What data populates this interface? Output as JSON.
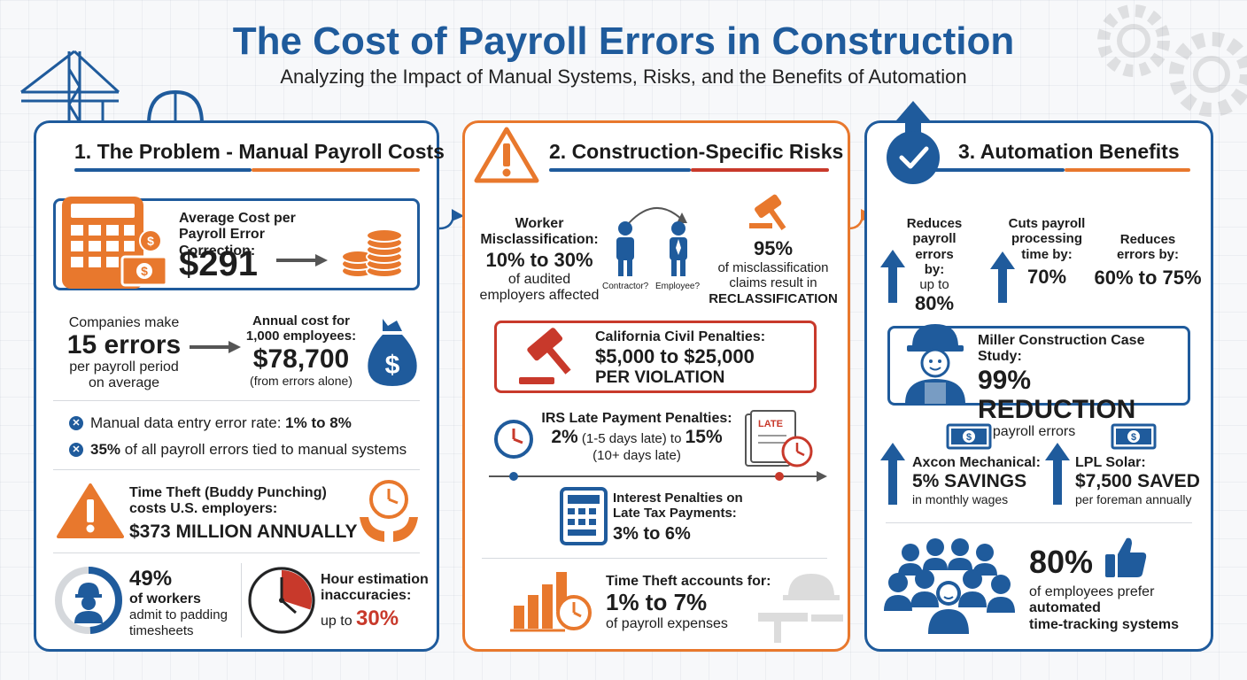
{
  "header": {
    "title": "The Cost of Payroll Errors in Construction",
    "subtitle": "Analyzing the Impact of Manual Systems, Risks, and the Benefits of Automation"
  },
  "panel1": {
    "title": "1. The Problem - Manual Payroll Costs",
    "avg_label": "Average Cost per Payroll Error Correction:",
    "avg_value": "$291",
    "companies_line1": "Companies make",
    "companies_value": "15 errors",
    "companies_line3": "per payroll period",
    "companies_line4": "on average",
    "annual_label": "Annual cost for 1,000 employees:",
    "annual_value": "$78,700",
    "annual_note": "(from errors alone)",
    "bullet1_text": "Manual data entry error rate: ",
    "bullet1_value": "1% to 8%",
    "bullet2_value": "35%",
    "bullet2_text": " of all payroll errors tied to manual systems",
    "theft_label1": "Time Theft (Buddy Punching)",
    "theft_label2": "costs U.S. employers:",
    "theft_value": "$373 MILLION ANNUALLY",
    "pad_value": "49%",
    "pad_line1": "of workers",
    "pad_line2": "admit to padding",
    "pad_line3": "timesheets",
    "pad_fraction": 0.49,
    "hour_line1": "Hour estimation",
    "hour_line2": "inaccuracies:",
    "hour_prefix": "up to ",
    "hour_value": "30%",
    "hour_fraction": 0.3
  },
  "panel2": {
    "title": "2. Construction-Specific Risks",
    "mis_line1": "Worker",
    "mis_line2": "Misclassification:",
    "mis_value": "10% to 30%",
    "mis_line3": "of audited",
    "mis_line4": "employers affected",
    "contractor_label": "Contractor?",
    "employee_label": "Employee?",
    "recl_value": "95%",
    "recl_line1": "of misclassification",
    "recl_line2": "claims result in",
    "recl_line3": "RECLASSIFICATION",
    "ca_label": "California Civil Penalties:",
    "ca_value": "$5,000 to $25,000",
    "ca_suffix": "PER VIOLATION",
    "irs_label": "IRS Late Payment Penalties:",
    "irs_value1": "2%",
    "irs_mid": " (1-5 days late) to ",
    "irs_value2": "15%",
    "irs_note": "(10+ days late)",
    "late_stamp": "LATE",
    "int_line1": "Interest Penalties on",
    "int_line2": "Late Tax Payments:",
    "int_value": "3% to 6%",
    "tt_label": "Time Theft accounts for:",
    "tt_value": "1% to 7%",
    "tt_note": "of payroll expenses"
  },
  "panel3": {
    "title": "3. Automation Benefits",
    "b1_line1": "Reduces",
    "b1_line2": "payroll",
    "b1_line3": "errors by:",
    "b1_line4": "up to",
    "b1_value": "80%",
    "b2_line1": "Cuts payroll",
    "b2_line2": "processing",
    "b2_line3": "time by:",
    "b2_value": "70%",
    "b3_line1": "Reduces",
    "b3_line2": "errors by:",
    "b3_value": "60% to 75%",
    "miller_label": "Miller Construction Case Study:",
    "miller_value": "99% REDUCTION",
    "miller_note": "in payroll errors",
    "axcon_label": "Axcon Mechanical:",
    "axcon_value": "5% SAVINGS",
    "axcon_note": "in monthly wages",
    "lpl_label": "LPL Solar:",
    "lpl_value": "$7,500 SAVED",
    "lpl_note": "per foreman annually",
    "prefer_value": "80%",
    "prefer_line1": "of employees prefer",
    "prefer_line2": "automated",
    "prefer_line3": "time-tracking systems"
  },
  "colors": {
    "blue": "#1f5b9c",
    "orange": "#e8782d",
    "red": "#c8392b"
  },
  "icons": [
    "crane-icon",
    "hard-hat-icon",
    "calculator-icon",
    "coin-stack-icon",
    "money-bag-icon",
    "warning-icon",
    "clock-hands-icon",
    "worker-avatar-icon",
    "clock-pie-icon",
    "people-swap-icon",
    "gavel-icon",
    "calendar-late-icon",
    "chart-clock-icon",
    "check-circle-icon",
    "dollar-bill-icon",
    "thumbs-up-icon",
    "crowd-icon"
  ]
}
